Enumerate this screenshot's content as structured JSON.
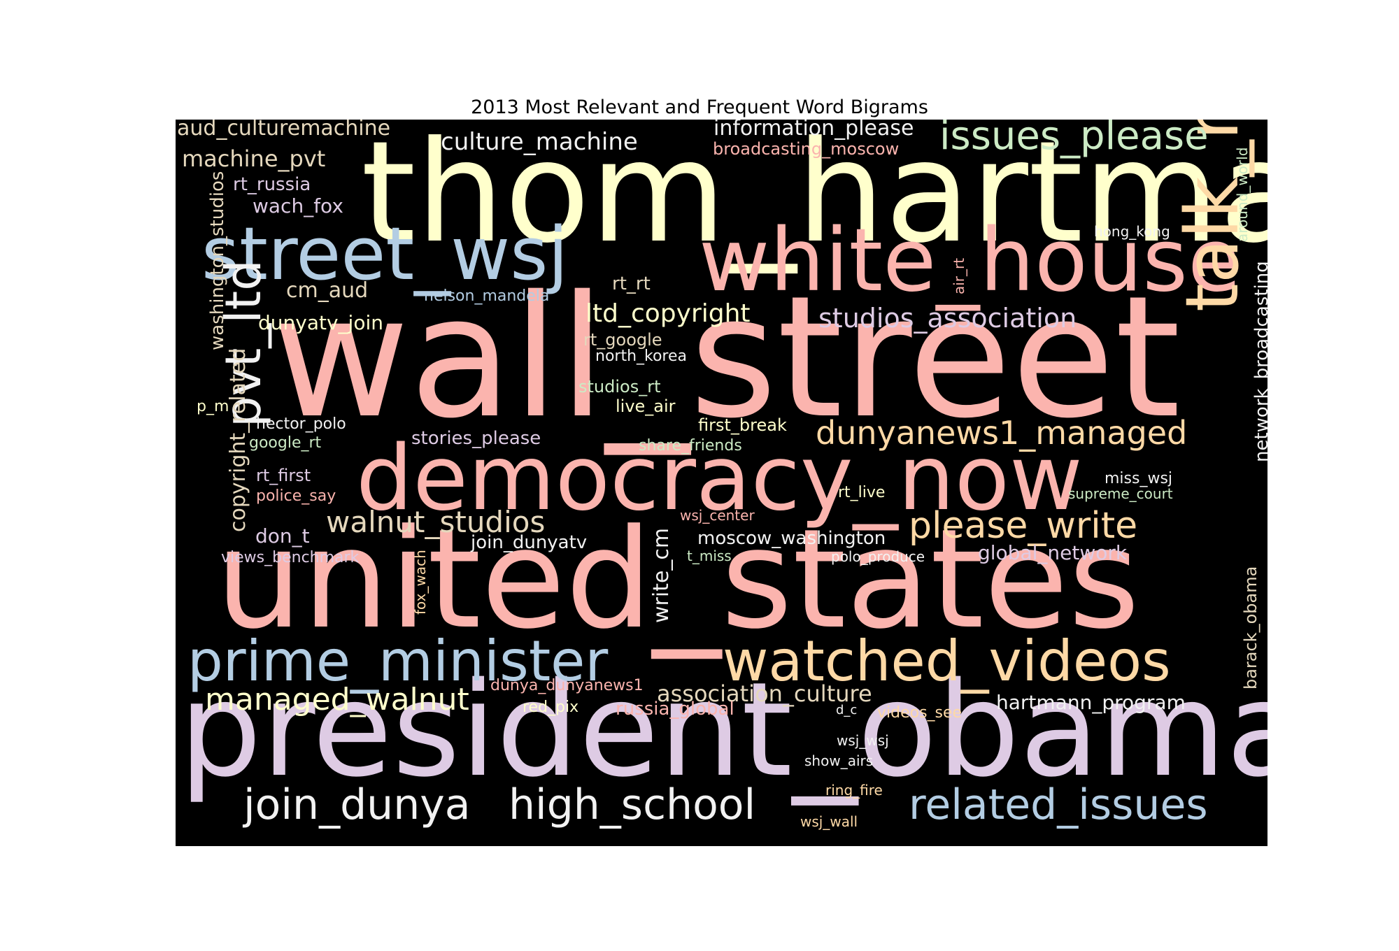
{
  "title": "2013 Most Relevant and Frequent Word Bigrams",
  "colors": {
    "pink": "#fbb4ae",
    "blue": "#b3cde3",
    "green": "#ccebc5",
    "lavender": "#decbe4",
    "orange": "#fed9a6",
    "yellow": "#ffffcc",
    "tan": "#e5d8bd",
    "rose": "#fddaec",
    "grey": "#f2f2f2"
  },
  "words": [
    {
      "id": "thom_hartmann",
      "text": "thom_hartmann"
    },
    {
      "id": "wall_street",
      "text": "wall_street"
    },
    {
      "id": "united_states",
      "text": "united_states"
    },
    {
      "id": "president_obama",
      "text": "president_obama"
    },
    {
      "id": "democracy_now",
      "text": "democracy_now"
    },
    {
      "id": "white_house",
      "text": "white_house"
    },
    {
      "id": "street_wsj",
      "text": "street_wsj"
    },
    {
      "id": "talk_radio",
      "text": "talk_radio"
    },
    {
      "id": "prime_minister",
      "text": "prime_minister"
    },
    {
      "id": "watched_videos",
      "text": "watched_videos"
    },
    {
      "id": "related_issues",
      "text": "related_issues"
    },
    {
      "id": "high_school",
      "text": "high_school"
    },
    {
      "id": "join_dunya",
      "text": "join_dunya"
    },
    {
      "id": "pvt_ltd",
      "text": "pvt_ltd"
    },
    {
      "id": "issues_please",
      "text": "issues_please"
    },
    {
      "id": "please_write",
      "text": "please_write"
    },
    {
      "id": "dunyanews1_managed",
      "text": "dunyanews1_managed"
    },
    {
      "id": "managed_walnut",
      "text": "managed_walnut"
    },
    {
      "id": "walnut_studios",
      "text": "walnut_studios"
    },
    {
      "id": "culture_machine",
      "text": "culture_machine"
    },
    {
      "id": "studios_association",
      "text": "studios_association"
    },
    {
      "id": "ltd_copyright",
      "text": "ltd_copyright"
    },
    {
      "id": "association_culture",
      "text": "association_culture"
    },
    {
      "id": "aud_culturemachine",
      "text": "aud_culturemachine"
    },
    {
      "id": "information_please",
      "text": "information_please"
    },
    {
      "id": "machine_pvt",
      "text": "machine_pvt"
    },
    {
      "id": "copyright_related",
      "text": "copyright_related"
    },
    {
      "id": "washington_studios",
      "text": "washington_studios"
    },
    {
      "id": "network_broadcasting",
      "text": "network_broadcasting"
    },
    {
      "id": "hartmann_program",
      "text": "hartmann_program"
    },
    {
      "id": "write_cm",
      "text": "write_cm"
    },
    {
      "id": "wach_fox",
      "text": "wach_fox"
    },
    {
      "id": "cm_aud",
      "text": "cm_aud"
    },
    {
      "id": "rt_russia",
      "text": "rt_russia"
    },
    {
      "id": "dunyatv_join",
      "text": "dunyatv_join"
    },
    {
      "id": "moscow_washington",
      "text": "moscow_washington"
    },
    {
      "id": "global_network",
      "text": "global_network"
    },
    {
      "id": "stories_please",
      "text": "stories_please"
    },
    {
      "id": "join_dunyatv",
      "text": "join_dunyatv"
    },
    {
      "id": "don_t",
      "text": "don_t"
    },
    {
      "id": "broadcasting_moscow",
      "text": "broadcasting_moscow"
    },
    {
      "id": "barack_obama",
      "text": "barack_obama"
    },
    {
      "id": "russia_global",
      "text": "russia_global"
    },
    {
      "id": "first_break",
      "text": "first_break"
    },
    {
      "id": "rt_google",
      "text": "rt_google"
    },
    {
      "id": "rt_rt",
      "text": "rt_rt"
    },
    {
      "id": "nelson_mandela",
      "text": "nelson_mandela"
    },
    {
      "id": "north_korea",
      "text": "north_korea"
    },
    {
      "id": "studios_rt",
      "text": "studios_rt"
    },
    {
      "id": "live_air",
      "text": "live_air"
    },
    {
      "id": "hector_polo",
      "text": "hector_polo"
    },
    {
      "id": "google_rt",
      "text": "google_rt"
    },
    {
      "id": "share_friends",
      "text": "share_friends"
    },
    {
      "id": "rt_first",
      "text": "rt_first"
    },
    {
      "id": "police_say",
      "text": "police_say"
    },
    {
      "id": "views_benchmark",
      "text": "views_benchmark"
    },
    {
      "id": "dunya_dunyanews1",
      "text": "dunya_dunyanews1"
    },
    {
      "id": "wsj_center",
      "text": "wsj_center"
    },
    {
      "id": "red_pix",
      "text": "red_pix"
    },
    {
      "id": "videos_see",
      "text": "videos_see"
    },
    {
      "id": "polo_produce",
      "text": "polo_produce"
    },
    {
      "id": "t_miss",
      "text": "t_miss"
    },
    {
      "id": "rt_live",
      "text": "rt_live"
    },
    {
      "id": "miss_wsj",
      "text": "miss_wsj"
    },
    {
      "id": "supreme_court",
      "text": "supreme_court"
    },
    {
      "id": "hong_kong",
      "text": "hong_kong"
    },
    {
      "id": "around_world",
      "text": "around_world"
    },
    {
      "id": "air_rt",
      "text": "air_rt"
    },
    {
      "id": "fox_wach",
      "text": "fox_wach"
    },
    {
      "id": "wsj_wsj",
      "text": "wsj_wsj"
    },
    {
      "id": "show_airs",
      "text": "show_airs"
    },
    {
      "id": "ring_fire",
      "text": "ring_fire"
    },
    {
      "id": "wsj_wall",
      "text": "wsj_wall"
    },
    {
      "id": "d_c",
      "text": "d_c"
    },
    {
      "id": "p_m",
      "text": "p_m"
    }
  ]
}
